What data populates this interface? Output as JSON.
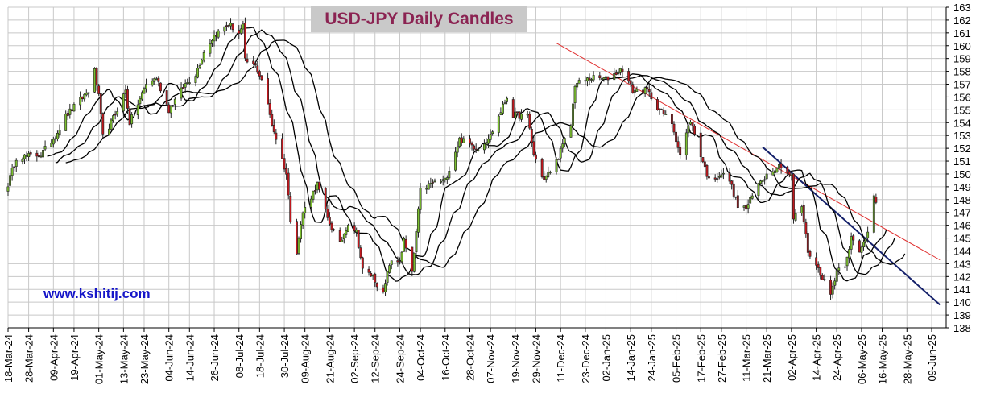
{
  "chart_data": {
    "type": "candlestick",
    "title": "USD-JPY Daily Candles",
    "watermark": "www.kshitij.com",
    "xlabel": "",
    "ylabel": "",
    "ylim": [
      138,
      163
    ],
    "y_ticks": [
      138,
      139,
      140,
      141,
      142,
      143,
      144,
      145,
      146,
      147,
      148,
      149,
      150,
      151,
      152,
      153,
      154,
      155,
      156,
      157,
      158,
      159,
      160,
      161,
      162,
      163
    ],
    "y_axis_position": "right",
    "grid": true,
    "x_tick_labels": [
      "18-Mar-24",
      "28-Mar-24",
      "09-Apr-24",
      "19-Apr-24",
      "01-May-24",
      "13-May-24",
      "23-May-24",
      "04-Jun-24",
      "14-Jun-24",
      "26-Jun-24",
      "08-Jul-24",
      "18-Jul-24",
      "30-Jul-24",
      "09-Aug-24",
      "21-Aug-24",
      "02-Sep-24",
      "12-Sep-24",
      "24-Sep-24",
      "04-Oct-24",
      "16-Oct-24",
      "28-Oct-24",
      "07-Nov-24",
      "19-Nov-24",
      "29-Nov-24",
      "11-Dec-24",
      "23-Dec-24",
      "02-Jan-25",
      "14-Jan-25",
      "24-Jan-25",
      "05-Feb-25",
      "17-Feb-25",
      "27-Feb-25",
      "11-Mar-25",
      "21-Mar-25",
      "02-Apr-25",
      "14-Apr-25",
      "24-Apr-25",
      "06-May-25",
      "16-May-25",
      "28-May-25",
      "09-Jun-25"
    ],
    "price_path": [
      [
        "18-Mar-24",
        149.2
      ],
      [
        "22-Mar-24",
        151.3
      ],
      [
        "03-Apr-24",
        151.5
      ],
      [
        "10-Apr-24",
        153.0
      ],
      [
        "15-Apr-24",
        154.5
      ],
      [
        "26-Apr-24",
        156.5
      ],
      [
        "29-Apr-24",
        158.0
      ],
      [
        "01-May-24",
        156.0
      ],
      [
        "03-May-24",
        152.9
      ],
      [
        "07-May-24",
        154.0
      ],
      [
        "14-May-24",
        156.5
      ],
      [
        "16-May-24",
        154.0
      ],
      [
        "24-May-24",
        157.0
      ],
      [
        "29-May-24",
        157.5
      ],
      [
        "04-Jun-24",
        155.0
      ],
      [
        "12-Jun-24",
        157.0
      ],
      [
        "17-Jun-24",
        157.8
      ],
      [
        "21-Jun-24",
        159.5
      ],
      [
        "26-Jun-24",
        160.8
      ],
      [
        "03-Jul-24",
        161.7
      ],
      [
        "08-Jul-24",
        161.0
      ],
      [
        "10-Jul-24",
        161.5
      ],
      [
        "11-Jul-24",
        158.8
      ],
      [
        "16-Jul-24",
        158.4
      ],
      [
        "19-Jul-24",
        157.4
      ],
      [
        "24-Jul-24",
        153.9
      ],
      [
        "31-Jul-24",
        150.0
      ],
      [
        "02-Aug-24",
        146.5
      ],
      [
        "05-Aug-24",
        144.0
      ],
      [
        "08-Aug-24",
        147.0
      ],
      [
        "15-Aug-24",
        149.2
      ],
      [
        "20-Aug-24",
        146.5
      ],
      [
        "26-Aug-24",
        144.5
      ],
      [
        "30-Aug-24",
        146.2
      ],
      [
        "03-Sep-24",
        145.5
      ],
      [
        "06-Sep-24",
        142.5
      ],
      [
        "11-Sep-24",
        142.0
      ],
      [
        "16-Sep-24",
        140.6
      ],
      [
        "19-Sep-24",
        143.0
      ],
      [
        "24-Sep-24",
        143.2
      ],
      [
        "26-Sep-24",
        144.8
      ],
      [
        "30-Sep-24",
        142.2
      ],
      [
        "04-Oct-24",
        148.7
      ],
      [
        "10-Oct-24",
        149.3
      ],
      [
        "16-Oct-24",
        149.5
      ],
      [
        "23-Oct-24",
        152.7
      ],
      [
        "01-Nov-24",
        152.0
      ],
      [
        "07-Nov-24",
        153.0
      ],
      [
        "15-Nov-24",
        156.0
      ],
      [
        "18-Nov-24",
        154.6
      ],
      [
        "25-Nov-24",
        154.5
      ],
      [
        "28-Nov-24",
        151.5
      ],
      [
        "03-Dec-24",
        149.5
      ],
      [
        "09-Dec-24",
        151.0
      ],
      [
        "16-Dec-24",
        153.8
      ],
      [
        "18-Dec-24",
        157.0
      ],
      [
        "26-Dec-24",
        157.5
      ],
      [
        "02-Jan-25",
        157.4
      ],
      [
        "10-Jan-25",
        158.2
      ],
      [
        "15-Jan-25",
        156.5
      ],
      [
        "22-Jan-25",
        156.5
      ],
      [
        "28-Jan-25",
        155.0
      ],
      [
        "03-Feb-25",
        154.0
      ],
      [
        "07-Feb-25",
        151.5
      ],
      [
        "12-Feb-25",
        154.2
      ],
      [
        "17-Feb-25",
        151.5
      ],
      [
        "21-Feb-25",
        149.5
      ],
      [
        "27-Feb-25",
        150.0
      ],
      [
        "03-Mar-25",
        149.5
      ],
      [
        "07-Mar-25",
        147.5
      ],
      [
        "11-Mar-25",
        147.3
      ],
      [
        "18-Mar-25",
        149.5
      ],
      [
        "25-Mar-25",
        150.5
      ],
      [
        "28-Mar-25",
        150.7
      ],
      [
        "02-Apr-25",
        149.8
      ],
      [
        "03-Apr-25",
        146.5
      ],
      [
        "07-Apr-25",
        147.5
      ],
      [
        "10-Apr-25",
        144.0
      ],
      [
        "16-Apr-25",
        142.3
      ],
      [
        "21-Apr-25",
        140.6
      ],
      [
        "24-Apr-25",
        142.5
      ],
      [
        "28-Apr-25",
        143.0
      ],
      [
        "01-May-25",
        145.0
      ],
      [
        "05-May-25",
        143.8
      ],
      [
        "09-May-25",
        145.5
      ],
      [
        "12-May-25",
        148.5
      ],
      [
        "13-May-25",
        148.0
      ]
    ],
    "last_candle": "13-May-25",
    "moving_averages": [
      {
        "period": "short"
      },
      {
        "period": "medium"
      },
      {
        "period": "long"
      }
    ],
    "trendlines": [
      {
        "color": "#e03030",
        "from": [
          "09-Dec-24",
          160.2
        ],
        "to": [
          "13-Jun-25",
          143.3
        ]
      },
      {
        "color": "#14206a",
        "from": [
          "19-Mar-25",
          152.1
        ],
        "to": [
          "13-Jun-25",
          139.8
        ]
      }
    ],
    "colors": {
      "bull_candle": "#7bbf2f",
      "bear_candle": "#c0181e",
      "moving_average": "#000000",
      "grid": "#c8c8c8",
      "title_text": "#8b2352",
      "title_bg": "#c9c9c9",
      "watermark_text": "#1515c8"
    }
  }
}
